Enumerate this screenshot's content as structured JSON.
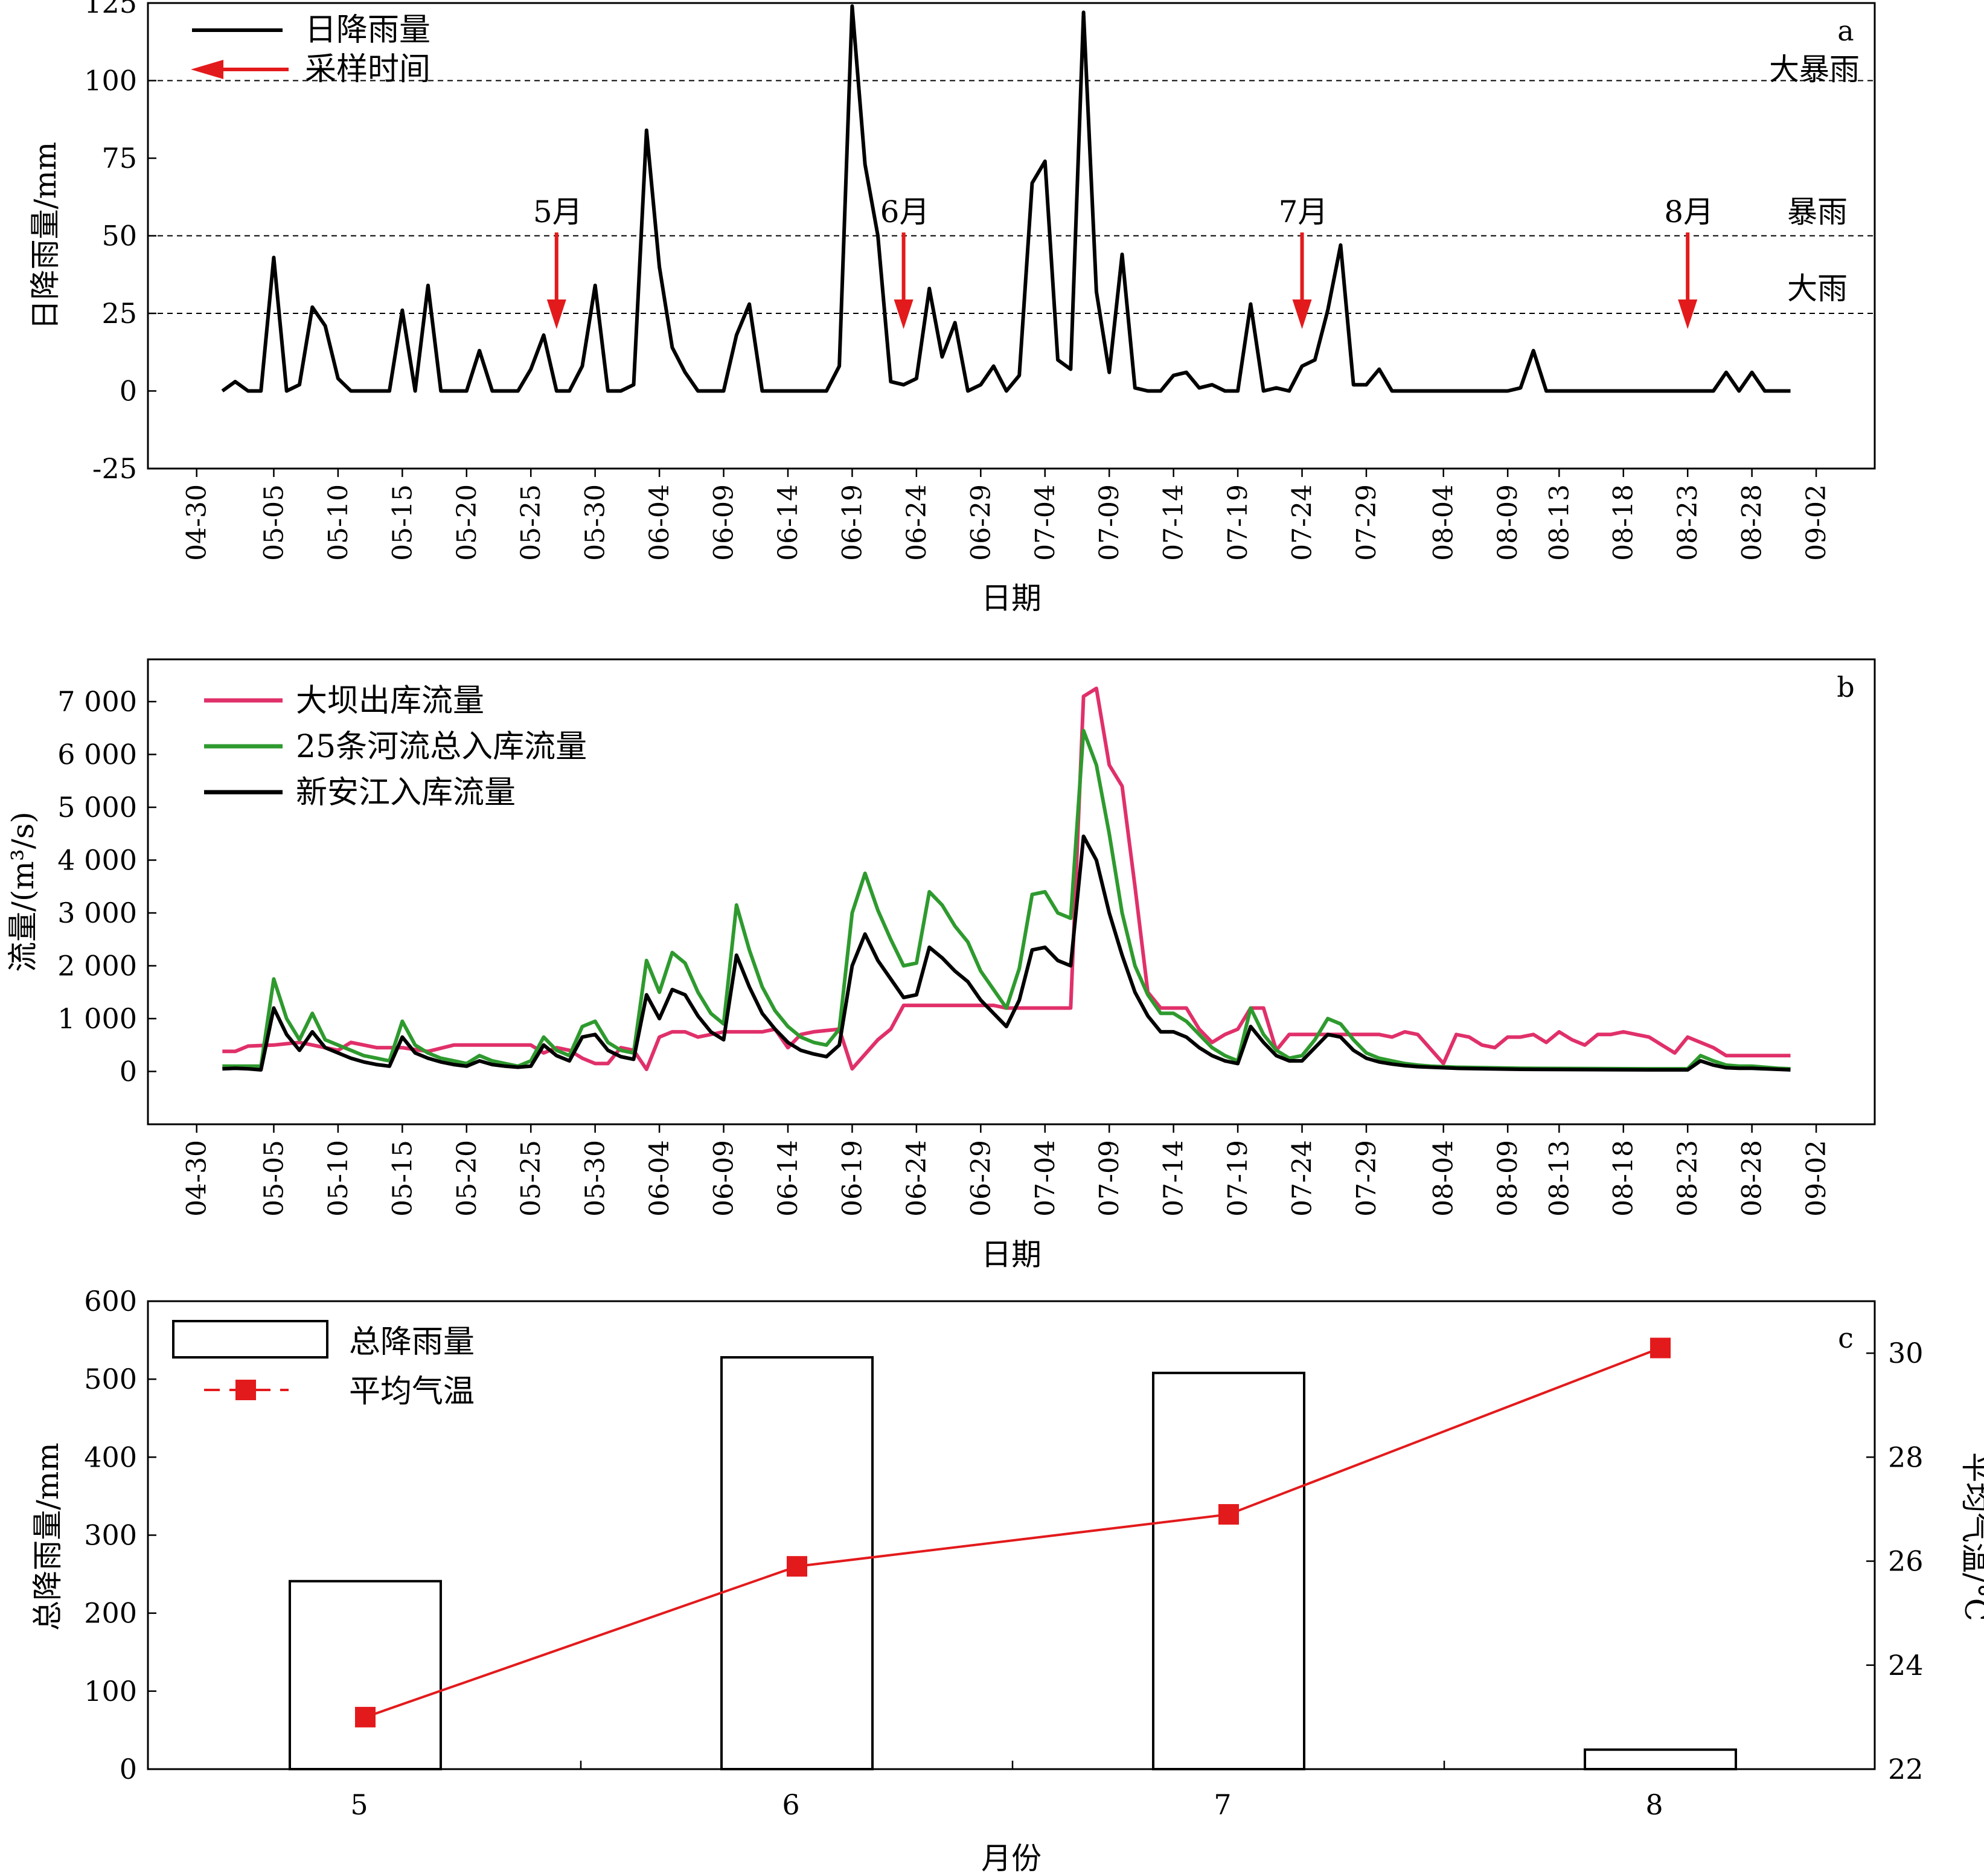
{
  "chart_data": [
    {
      "panel": "a",
      "type": "line",
      "ylabel": "日降雨量/mm",
      "xlabel": "日期",
      "ylim": [
        -25,
        125
      ],
      "yticks": [
        -25,
        0,
        25,
        50,
        75,
        100,
        125
      ],
      "x_tick_labels": [
        "04-30",
        "05-05",
        "05-10",
        "05-15",
        "05-20",
        "05-25",
        "05-30",
        "06-04",
        "06-09",
        "06-14",
        "06-19",
        "06-24",
        "06-29",
        "07-04",
        "07-09",
        "07-14",
        "07-19",
        "07-24",
        "07-29",
        "08-04",
        "08-09",
        "08-13",
        "08-18",
        "08-23",
        "08-28",
        "09-02"
      ],
      "series": [
        {
          "name": "日降雨量",
          "color": "#000000",
          "x": [
            "05-01",
            "05-02",
            "05-03",
            "05-04",
            "05-05",
            "05-06",
            "05-07",
            "05-08",
            "05-09",
            "05-10",
            "05-11",
            "05-12",
            "05-13",
            "05-14",
            "05-15",
            "05-16",
            "05-17",
            "05-18",
            "05-19",
            "05-20",
            "05-21",
            "05-22",
            "05-23",
            "05-24",
            "05-25",
            "05-26",
            "05-27",
            "05-28",
            "05-29",
            "05-30",
            "05-31",
            "06-01",
            "06-02",
            "06-03",
            "06-04",
            "06-05",
            "06-06",
            "06-07",
            "06-08",
            "06-09",
            "06-10",
            "06-11",
            "06-12",
            "06-13",
            "06-14",
            "06-15",
            "06-16",
            "06-17",
            "06-18",
            "06-19",
            "06-20",
            "06-21",
            "06-22",
            "06-23",
            "06-24",
            "06-25",
            "06-26",
            "06-27",
            "06-28",
            "06-29",
            "06-30",
            "07-01",
            "07-02",
            "07-03",
            "07-04",
            "07-05",
            "07-06",
            "07-07",
            "07-08",
            "07-09",
            "07-10",
            "07-11",
            "07-12",
            "07-13",
            "07-14",
            "07-15",
            "07-16",
            "07-17",
            "07-18",
            "07-19",
            "07-20",
            "07-21",
            "07-22",
            "07-23",
            "07-24",
            "07-25",
            "07-26",
            "07-27",
            "07-28",
            "07-29",
            "07-30",
            "07-31",
            "08-01",
            "08-04",
            "08-09",
            "08-10",
            "08-11",
            "08-12",
            "08-13",
            "08-23",
            "08-24",
            "08-25",
            "08-26",
            "08-27",
            "08-28",
            "08-29",
            "08-30",
            "08-31"
          ],
          "y": [
            0,
            3,
            0,
            0,
            43,
            0,
            2,
            27,
            21,
            4,
            0,
            0,
            0,
            0,
            26,
            0,
            34,
            0,
            0,
            0,
            13,
            0,
            0,
            0,
            7,
            18,
            0,
            0,
            8,
            34,
            0,
            0,
            2,
            84,
            40,
            14,
            6,
            0,
            0,
            0,
            18,
            28,
            0,
            0,
            0,
            0,
            0,
            0,
            8,
            124,
            73,
            50,
            3,
            2,
            4,
            33,
            11,
            22,
            0,
            2,
            8,
            0,
            5,
            67,
            74,
            10,
            7,
            122,
            32,
            6,
            44,
            1,
            0,
            0,
            5,
            6,
            1,
            2,
            0,
            0,
            28,
            0,
            1,
            0,
            8,
            10,
            26,
            47,
            2,
            2,
            7,
            0,
            0,
            0,
            0,
            1,
            13,
            0,
            0,
            0,
            0,
            0,
            6,
            0,
            6,
            0,
            0,
            0
          ]
        }
      ],
      "reference_lines": [
        {
          "value": 100,
          "label": "大暴雨"
        },
        {
          "value": 50,
          "label": "暴雨"
        },
        {
          "value": 25,
          "label": "大雨"
        }
      ],
      "annotations": [
        {
          "name": "采样时间",
          "label": "5月",
          "x": "05-27"
        },
        {
          "name": "采样时间",
          "label": "6月",
          "x": "06-23"
        },
        {
          "name": "采样时间",
          "label": "7月",
          "x": "07-24"
        },
        {
          "name": "采样时间",
          "label": "8月",
          "x": "08-23"
        }
      ],
      "annotation_color": "#e31a1c",
      "panel_label": "a",
      "legend": "top-left"
    },
    {
      "panel": "b",
      "type": "line",
      "ylabel": "流量/(m³/s)",
      "xlabel": "日期",
      "ylim": [
        -1000,
        7800
      ],
      "yticks": [
        0,
        1000,
        2000,
        3000,
        4000,
        5000,
        6000,
        7000
      ],
      "ytick_labels": [
        "0",
        "1 000",
        "2 000",
        "3 000",
        "4 000",
        "5 000",
        "6 000",
        "7 000"
      ],
      "x_tick_labels": [
        "04-30",
        "05-05",
        "05-10",
        "05-15",
        "05-20",
        "05-25",
        "05-30",
        "06-04",
        "06-09",
        "06-14",
        "06-19",
        "06-24",
        "06-29",
        "07-04",
        "07-09",
        "07-14",
        "07-19",
        "07-24",
        "07-29",
        "08-04",
        "08-09",
        "08-13",
        "08-18",
        "08-23",
        "08-28",
        "09-02"
      ],
      "series": [
        {
          "name": "大坝出库流量",
          "color": "#e0306a",
          "x": [
            "05-01",
            "05-02",
            "05-03",
            "05-05",
            "05-07",
            "05-10",
            "05-11",
            "05-13",
            "05-15",
            "05-17",
            "05-19",
            "05-21",
            "05-23",
            "05-25",
            "05-26",
            "05-27",
            "05-28",
            "05-29",
            "05-30",
            "05-31",
            "06-01",
            "06-02",
            "06-03",
            "06-04",
            "06-05",
            "06-06",
            "06-07",
            "06-08",
            "06-09",
            "06-11",
            "06-12",
            "06-13",
            "06-14",
            "06-15",
            "06-16",
            "06-18",
            "06-19",
            "06-21",
            "06-22",
            "06-23",
            "06-30",
            "07-01",
            "07-06",
            "07-07",
            "07-08",
            "07-09",
            "07-10",
            "07-11",
            "07-12",
            "07-13",
            "07-14",
            "07-15",
            "07-16",
            "07-17",
            "07-18",
            "07-19",
            "07-20",
            "07-21",
            "07-22",
            "07-23",
            "07-24",
            "07-25",
            "07-26",
            "07-28",
            "07-30",
            "07-31",
            "08-01",
            "08-02",
            "08-04",
            "08-05",
            "08-06",
            "08-07",
            "08-08",
            "08-09",
            "08-10",
            "08-11",
            "08-12",
            "08-13",
            "08-14",
            "08-15",
            "08-16",
            "08-17",
            "08-18",
            "08-19",
            "08-20",
            "08-21",
            "08-22",
            "08-23",
            "08-24",
            "08-25",
            "08-26",
            "08-27",
            "08-28",
            "08-29",
            "08-30",
            "08-31"
          ],
          "y": [
            380,
            380,
            480,
            500,
            550,
            400,
            550,
            450,
            450,
            380,
            500,
            500,
            500,
            500,
            350,
            450,
            400,
            250,
            150,
            150,
            450,
            400,
            40,
            650,
            750,
            750,
            650,
            700,
            750,
            750,
            750,
            800,
            450,
            700,
            750,
            800,
            50,
            600,
            800,
            1250,
            1250,
            1200,
            1200,
            7100,
            7250,
            5800,
            5400,
            3500,
            1500,
            1200,
            1200,
            1200,
            800,
            550,
            700,
            800,
            1200,
            1200,
            400,
            700,
            700,
            700,
            700,
            700,
            700,
            650,
            750,
            700,
            150,
            700,
            650,
            500,
            450,
            650,
            650,
            700,
            550,
            750,
            600,
            500,
            700,
            700,
            750,
            700,
            650,
            500,
            350,
            650,
            550,
            450,
            300,
            300,
            300,
            300,
            300,
            300
          ]
        },
        {
          "name": "25条河流总入库流量",
          "color": "#2e9a2e",
          "x": [
            "05-01",
            "05-02",
            "05-03",
            "05-04",
            "05-05",
            "05-06",
            "05-07",
            "05-08",
            "05-09",
            "05-10",
            "05-11",
            "05-12",
            "05-13",
            "05-14",
            "05-15",
            "05-16",
            "05-17",
            "05-18",
            "05-19",
            "05-20",
            "05-21",
            "05-22",
            "05-23",
            "05-24",
            "05-25",
            "05-26",
            "05-27",
            "05-28",
            "05-29",
            "05-30",
            "05-31",
            "06-01",
            "06-02",
            "06-03",
            "06-04",
            "06-05",
            "06-06",
            "06-07",
            "06-08",
            "06-09",
            "06-10",
            "06-11",
            "06-12",
            "06-13",
            "06-14",
            "06-15",
            "06-16",
            "06-17",
            "06-18",
            "06-19",
            "06-20",
            "06-21",
            "06-22",
            "06-23",
            "06-24",
            "06-25",
            "06-26",
            "06-27",
            "06-28",
            "06-29",
            "06-30",
            "07-01",
            "07-02",
            "07-03",
            "07-04",
            "07-05",
            "07-06",
            "07-07",
            "07-08",
            "07-09",
            "07-10",
            "07-11",
            "07-12",
            "07-13",
            "07-14",
            "07-15",
            "07-16",
            "07-17",
            "07-18",
            "07-19",
            "07-20",
            "07-21",
            "07-22",
            "07-23",
            "07-24",
            "07-25",
            "07-26",
            "07-27",
            "07-28",
            "07-29",
            "07-30",
            "07-31",
            "08-01",
            "08-02",
            "08-03",
            "08-05",
            "08-10",
            "08-20",
            "08-23",
            "08-24",
            "08-25",
            "08-26",
            "08-27",
            "08-28",
            "08-29",
            "08-30",
            "08-31"
          ],
          "y": [
            100,
            100,
            100,
            100,
            1750,
            1000,
            600,
            1100,
            600,
            500,
            400,
            300,
            250,
            200,
            950,
            500,
            350,
            250,
            200,
            150,
            300,
            200,
            150,
            100,
            200,
            650,
            400,
            300,
            850,
            950,
            550,
            400,
            350,
            2100,
            1500,
            2250,
            2050,
            1500,
            1100,
            900,
            3150,
            2300,
            1600,
            1150,
            850,
            650,
            550,
            500,
            800,
            3000,
            3750,
            3050,
            2500,
            2000,
            2050,
            3400,
            3150,
            2750,
            2450,
            1900,
            1550,
            1200,
            1950,
            3350,
            3400,
            3000,
            2900,
            6450,
            5800,
            4500,
            3000,
            2000,
            1450,
            1100,
            1100,
            950,
            700,
            450,
            300,
            200,
            1200,
            700,
            400,
            250,
            300,
            600,
            1000,
            900,
            600,
            350,
            250,
            200,
            150,
            120,
            100,
            80,
            60,
            50,
            50,
            300,
            200,
            120,
            100,
            100,
            80,
            60,
            50
          ]
        },
        {
          "name": "新安江入库流量",
          "color": "#000000",
          "x": [
            "05-01",
            "05-02",
            "05-03",
            "05-04",
            "05-05",
            "05-06",
            "05-07",
            "05-08",
            "05-09",
            "05-10",
            "05-11",
            "05-12",
            "05-13",
            "05-14",
            "05-15",
            "05-16",
            "05-17",
            "05-18",
            "05-19",
            "05-20",
            "05-21",
            "05-22",
            "05-23",
            "05-24",
            "05-25",
            "05-26",
            "05-27",
            "05-28",
            "05-29",
            "05-30",
            "05-31",
            "06-01",
            "06-02",
            "06-03",
            "06-04",
            "06-05",
            "06-06",
            "06-07",
            "06-08",
            "06-09",
            "06-10",
            "06-11",
            "06-12",
            "06-13",
            "06-14",
            "06-15",
            "06-16",
            "06-17",
            "06-18",
            "06-19",
            "06-20",
            "06-21",
            "06-22",
            "06-23",
            "06-24",
            "06-25",
            "06-26",
            "06-27",
            "06-28",
            "06-29",
            "06-30",
            "07-01",
            "07-02",
            "07-03",
            "07-04",
            "07-05",
            "07-06",
            "07-07",
            "07-08",
            "07-09",
            "07-10",
            "07-11",
            "07-12",
            "07-13",
            "07-14",
            "07-15",
            "07-16",
            "07-17",
            "07-18",
            "07-19",
            "07-20",
            "07-21",
            "07-22",
            "07-23",
            "07-24",
            "07-25",
            "07-26",
            "07-27",
            "07-28",
            "07-29",
            "07-30",
            "07-31",
            "08-01",
            "08-02",
            "08-03",
            "08-05",
            "08-10",
            "08-20",
            "08-23",
            "08-24",
            "08-25",
            "08-26",
            "08-27",
            "08-28",
            "08-29",
            "08-30",
            "08-31"
          ],
          "y": [
            50,
            60,
            50,
            30,
            1200,
            700,
            400,
            750,
            450,
            350,
            250,
            180,
            130,
            100,
            650,
            350,
            250,
            180,
            130,
            100,
            200,
            130,
            100,
            80,
            100,
            500,
            300,
            200,
            650,
            700,
            400,
            280,
            230,
            1450,
            1000,
            1550,
            1450,
            1050,
            750,
            600,
            2200,
            1600,
            1100,
            800,
            550,
            400,
            330,
            280,
            500,
            2000,
            2600,
            2100,
            1750,
            1400,
            1450,
            2350,
            2150,
            1900,
            1700,
            1350,
            1100,
            850,
            1350,
            2300,
            2350,
            2100,
            2000,
            4450,
            4000,
            3000,
            2200,
            1500,
            1050,
            750,
            750,
            650,
            450,
            300,
            200,
            150,
            850,
            550,
            300,
            200,
            200,
            450,
            700,
            650,
            400,
            250,
            180,
            140,
            110,
            90,
            80,
            60,
            40,
            30,
            30,
            200,
            120,
            70,
            60,
            60,
            50,
            40,
            30
          ]
        }
      ],
      "panel_label": "b",
      "legend": "top-left"
    },
    {
      "panel": "c",
      "type": "bar",
      "categories": [
        "5",
        "6",
        "7",
        "8"
      ],
      "xlabel": "月份",
      "ylabel": "总降雨量/mm",
      "ylim": [
        0,
        600
      ],
      "yticks": [
        0,
        100,
        200,
        300,
        400,
        500,
        600
      ],
      "y2label": "平均气温/°C",
      "y2lim": [
        22,
        31
      ],
      "y2ticks": [
        22,
        24,
        26,
        28,
        30
      ],
      "series": [
        {
          "name": "总降雨量",
          "type": "bar",
          "axis": "left",
          "values": [
            241,
            528,
            508,
            25
          ]
        },
        {
          "name": "平均气温",
          "type": "line",
          "axis": "right",
          "color": "#e31a1c",
          "values": [
            23.0,
            25.9,
            26.9,
            30.1
          ]
        }
      ],
      "panel_label": "c",
      "legend": "top-left"
    }
  ]
}
